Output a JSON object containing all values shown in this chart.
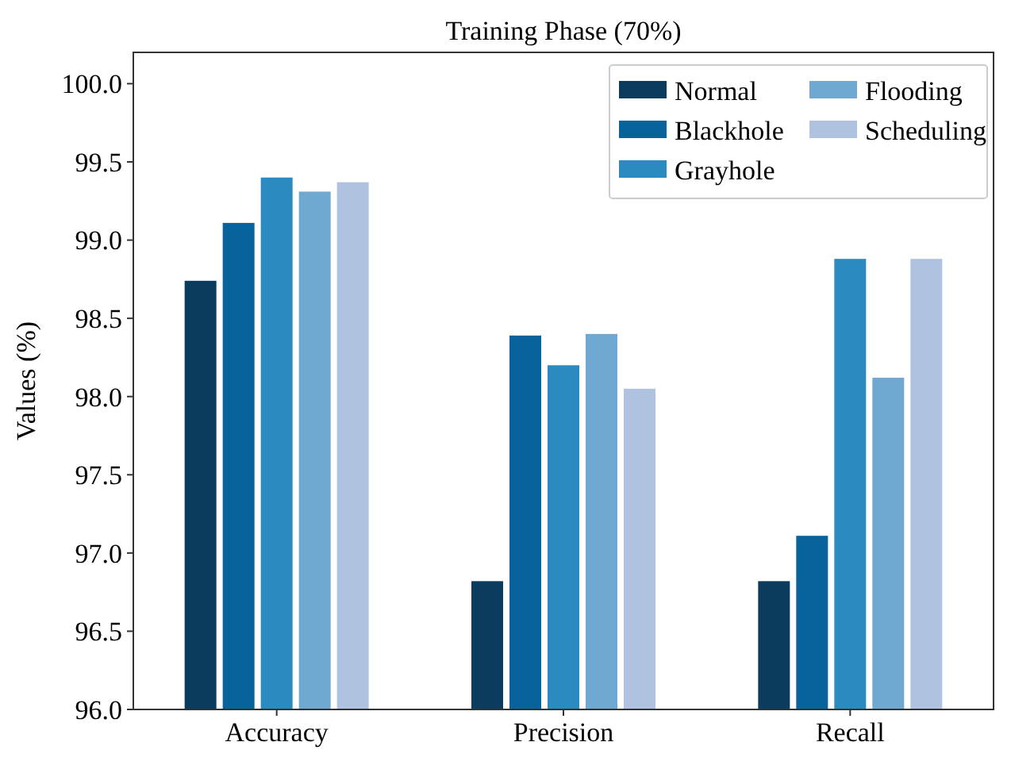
{
  "chart_data": {
    "type": "bar",
    "title": "Training Phase (70%)",
    "ylabel": "Values (%)",
    "categories": [
      "Accuracy",
      "Precision",
      "Recall"
    ],
    "series": [
      {
        "name": "Normal",
        "color": "#0b3c5d",
        "values": [
          98.74,
          96.82,
          96.82
        ]
      },
      {
        "name": "Blackhole",
        "color": "#08629c",
        "values": [
          99.11,
          98.39,
          97.11
        ]
      },
      {
        "name": "Grayhole",
        "color": "#2b8ac0",
        "values": [
          99.4,
          98.2,
          98.88
        ]
      },
      {
        "name": "Flooding",
        "color": "#6fa8d0",
        "values": [
          99.31,
          98.4,
          98.12
        ]
      },
      {
        "name": "Scheduling",
        "color": "#afc3e0",
        "values": [
          99.37,
          98.05,
          98.88
        ]
      }
    ],
    "ylim": [
      96,
      100.2
    ],
    "yticks": [
      {
        "value": 96,
        "label": "96.0"
      },
      {
        "value": 96.5,
        "label": "96.5"
      },
      {
        "value": 97,
        "label": "97.0"
      },
      {
        "value": 97.5,
        "label": "97.5"
      },
      {
        "value": 98,
        "label": "98.0"
      },
      {
        "value": 98.5,
        "label": "98.5"
      },
      {
        "value": 99,
        "label": "99.0"
      },
      {
        "value": 99.5,
        "label": "99.5"
      },
      {
        "value": 100,
        "label": "100.0"
      }
    ],
    "grid": false,
    "legend": "top right"
  }
}
